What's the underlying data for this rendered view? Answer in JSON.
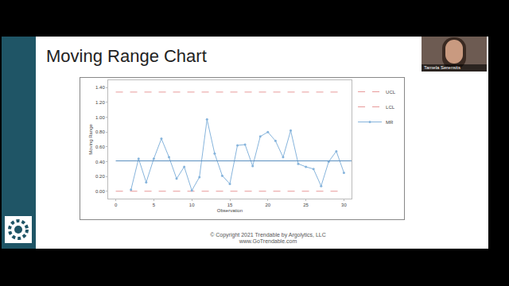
{
  "slide": {
    "title": "Moving Range Chart",
    "footer": [
      "© Copyright 2021   Trendable by Argolytics, LLC",
      "www.GoTrendable.com"
    ],
    "presenter": "Tamela Serensits"
  },
  "chart_data": {
    "type": "line",
    "x_label": "Observation",
    "y_label": "Moving Range",
    "x": [
      2,
      3,
      4,
      5,
      6,
      7,
      8,
      9,
      10,
      11,
      12,
      13,
      14,
      15,
      16,
      17,
      18,
      19,
      20,
      21,
      22,
      23,
      24,
      25,
      26,
      27,
      28,
      29,
      30
    ],
    "series": [
      {
        "name": "UCL",
        "color": "#e89a9a",
        "line_style": "dashed",
        "x": [
          0,
          30
        ],
        "values": [
          1.34,
          1.34
        ]
      },
      {
        "name": "LCL",
        "color": "#e89a9a",
        "line_style": "dashed",
        "x": [
          0,
          30
        ],
        "values": [
          0,
          0
        ]
      },
      {
        "name": "MR",
        "color": "#86b4dc",
        "line_style": "solid",
        "marker": "circle",
        "values": [
          0.02,
          0.44,
          0.12,
          0.44,
          0.71,
          0.46,
          0.17,
          0.33,
          0.01,
          0.19,
          0.97,
          0.51,
          0.21,
          0.1,
          0.62,
          0.63,
          0.34,
          0.74,
          0.8,
          0.68,
          0.46,
          0.82,
          0.37,
          0.33,
          0.3,
          0.07,
          0.4,
          0.54,
          0.25
        ]
      },
      {
        "color": "#5b8fbf",
        "line_style": "solid",
        "x": [
          0,
          31
        ],
        "values": [
          0.41,
          0.41
        ]
      }
    ],
    "xlim": [
      -1,
      31
    ],
    "xticks": [
      0,
      5,
      10,
      15,
      20,
      25,
      30
    ],
    "ylim": [
      -0.1,
      1.5
    ],
    "yticks": [
      {
        "value": 0,
        "label": "0.00"
      },
      {
        "value": 0.2,
        "label": "0.20"
      },
      {
        "value": 0.4,
        "label": "0.40"
      },
      {
        "value": 0.6,
        "label": "0.60"
      },
      {
        "value": 0.8,
        "label": "0.80"
      },
      {
        "value": 1.0,
        "label": "1.00"
      },
      {
        "value": 1.2,
        "label": "1.20"
      },
      {
        "value": 1.4,
        "label": "1.40"
      }
    ],
    "grid": false,
    "legend": "right"
  }
}
